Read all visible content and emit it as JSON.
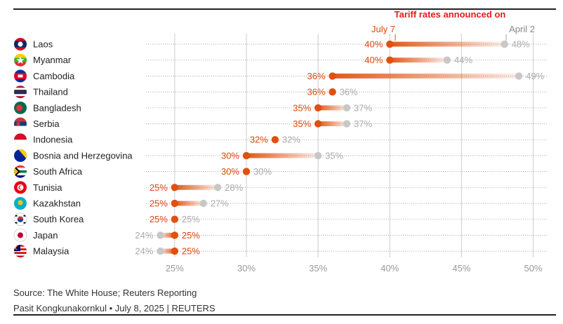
{
  "chart_data": {
    "type": "dumbbell",
    "title": "Tariff rates announced on",
    "legend": [
      "July 7",
      "April 2"
    ],
    "xlim": [
      23,
      51
    ],
    "xticks": [
      25,
      30,
      35,
      40,
      45,
      50
    ],
    "xtick_labels": [
      "25%",
      "30%",
      "35%",
      "40%",
      "45%",
      "50%"
    ],
    "categories": [
      "Laos",
      "Myanmar",
      "Cambodia",
      "Thailand",
      "Bangladesh",
      "Serbia",
      "Indonesia",
      "Bosnia and Herzegovina",
      "South Africa",
      "Tunisia",
      "Kazakhstan",
      "South Korea",
      "Japan",
      "Malaysia"
    ],
    "series": [
      {
        "name": "July 7",
        "values": [
          40,
          40,
          36,
          36,
          35,
          35,
          32,
          30,
          30,
          25,
          25,
          25,
          25,
          25
        ]
      },
      {
        "name": "April 2",
        "values": [
          48,
          44,
          49,
          36,
          37,
          37,
          32,
          35,
          30,
          28,
          27,
          25,
          24,
          24
        ]
      }
    ],
    "colors": {
      "july": "#e0500f",
      "april": "#c8c8c8",
      "text_july": "#d9480f",
      "text_april": "#aaaaaa",
      "title": "#e31b1b",
      "grid": "#cccccc"
    },
    "flags": [
      "flag-laos",
      "flag-myanmar",
      "flag-cambodia",
      "flag-thailand",
      "flag-bangladesh",
      "flag-serbia",
      "flag-indonesia",
      "flag-bosnia",
      "flag-south-africa",
      "flag-tunisia",
      "flag-kazakhstan",
      "flag-south-korea",
      "flag-japan",
      "flag-malaysia"
    ]
  },
  "footer": {
    "source": "Source: The White House; Reuters Reporting",
    "byline": "Pasit Kongkunakornkul • July 8, 2025 | REUTERS"
  }
}
